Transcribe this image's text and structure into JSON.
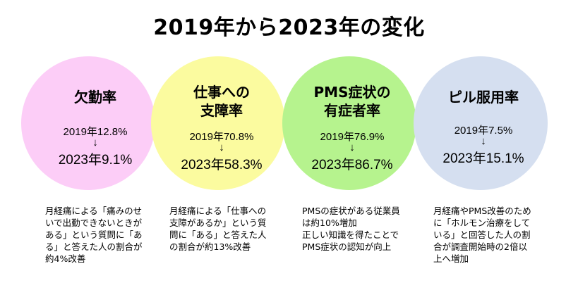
{
  "title": "2019年から2023年の変化",
  "arrow": "↓",
  "items": [
    {
      "label": "欠勤率",
      "color": "#fccdf7",
      "y2019": "2019年12.8%",
      "y2023": "2023年9.1%",
      "desc": "月経痛による「痛みのせ\nいで出勤できないときが\nある」という質問に「あ\nる」と答えた人の割合が\n約4%改善"
    },
    {
      "label": "仕事への\n支障率",
      "color": "#fbfb9f",
      "y2019": "2019年70.8%",
      "y2023": "2023年58.3%",
      "desc": "月経痛による「仕事への\n支障があるか」という質\n問に「ある」と答えた人\nの割合が約13%改善"
    },
    {
      "label": "PMS症状の\n有症者率",
      "color": "#b6f38e",
      "y2019": "2019年76.9%",
      "y2023": "2023年86.7%",
      "desc": "PMSの症状がある従業員\nは約10%増加\n正しい知識を得たことで\nPMS症状の認知が向上"
    },
    {
      "label": "ピル服用率",
      "color": "#d5dff0",
      "y2019": "2019年7.5%",
      "y2023": "2023年15.1%",
      "desc": "月経痛やPMS改善のため\nに「ホルモン治療をして\nいる」と回答した人の割\n合が調査開始時の2倍以\n上へ増加"
    }
  ]
}
